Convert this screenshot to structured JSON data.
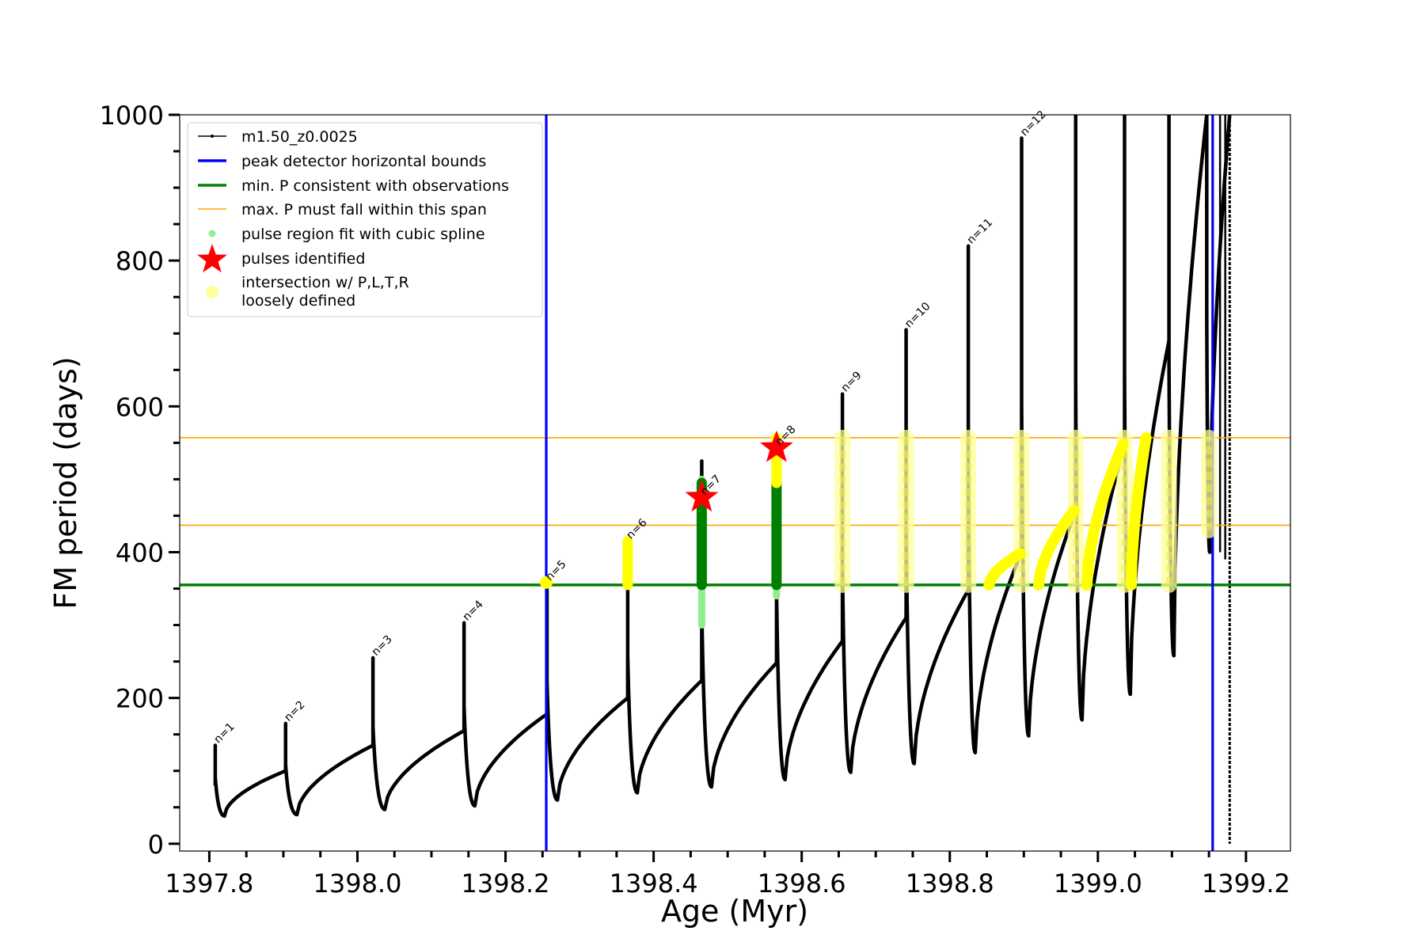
{
  "chart_data": {
    "type": "line",
    "title": "",
    "xlabel": "Age (Myr)",
    "ylabel": "FM period (days)",
    "xlim": [
      1397.76,
      1399.26
    ],
    "ylim": [
      -10,
      1000
    ],
    "x_ticks": [
      1397.8,
      1398.0,
      1398.2,
      1398.4,
      1398.6,
      1398.8,
      1399.0,
      1399.2
    ],
    "x_tick_labels": [
      "1397.8",
      "1398.0",
      "1398.2",
      "1398.4",
      "1398.6",
      "1398.8",
      "1399.0",
      "1399.2"
    ],
    "y_ticks": [
      0,
      200,
      400,
      600,
      800,
      1000
    ],
    "y_tick_labels": [
      "0",
      "200",
      "400",
      "600",
      "800",
      "1000"
    ],
    "grid": false,
    "legend_position": "top-left",
    "legend": [
      {
        "label": "m1.50_z0.0025",
        "marker": "line-dot",
        "color": "#000000"
      },
      {
        "label": "peak detector horizontal bounds",
        "marker": "line",
        "color": "#0000ff"
      },
      {
        "label": "min. P consistent with observations",
        "marker": "line",
        "color": "#008000"
      },
      {
        "label": "max. P must fall within this span",
        "marker": "thin-line",
        "color": "#ffa500"
      },
      {
        "label": "pulse region fit with cubic spline",
        "marker": "dot",
        "color": "#90ee90"
      },
      {
        "label": "pulses identified",
        "marker": "star",
        "color": "#ff0000"
      },
      {
        "label": "intersection w/ P,L,T,R",
        "label2": "loosely defined",
        "marker": "circle",
        "color": "#ffff99"
      }
    ],
    "colors": {
      "track": "#000000",
      "vbound": "#0000ff",
      "minP": "#008000",
      "maxP": "#ffa500",
      "spline": "#90ee90",
      "pulse_fit": "#008000",
      "star": "#ff0000",
      "intersect": "#ffff00",
      "intersect_loose": "#ffff99"
    },
    "vertical_bounds": [
      1398.255,
      1399.155
    ],
    "min_period": 355,
    "max_period_span": [
      437,
      557
    ],
    "pulse_labels": [
      {
        "label": "n=1",
        "x": 1397.808,
        "y": 135
      },
      {
        "label": "n=2",
        "x": 1397.903,
        "y": 165
      },
      {
        "label": "n=3",
        "x": 1398.021,
        "y": 255
      },
      {
        "label": "n=4",
        "x": 1398.144,
        "y": 303
      },
      {
        "label": "n=5",
        "x": 1398.256,
        "y": 358
      },
      {
        "label": "n=6",
        "x": 1398.365,
        "y": 415
      },
      {
        "label": "n=7",
        "x": 1398.465,
        "y": 475
      },
      {
        "label": "n=8",
        "x": 1398.566,
        "y": 543
      },
      {
        "label": "n=9",
        "x": 1398.655,
        "y": 617
      },
      {
        "label": "n=10",
        "x": 1398.741,
        "y": 705
      },
      {
        "label": "n=11",
        "x": 1398.825,
        "y": 820
      },
      {
        "label": "n=12",
        "x": 1398.897,
        "y": 968
      }
    ],
    "pulses": [
      {
        "x": 1397.808,
        "peak": 135,
        "min": 38,
        "before": 80
      },
      {
        "x": 1397.903,
        "peak": 165,
        "min": 40,
        "before": 100
      },
      {
        "x": 1398.021,
        "peak": 255,
        "min": 47,
        "before": 135
      },
      {
        "x": 1398.144,
        "peak": 303,
        "min": 52,
        "before": 155
      },
      {
        "x": 1398.256,
        "peak": 358,
        "min": 60,
        "before": 178
      },
      {
        "x": 1398.365,
        "peak": 415,
        "min": 70,
        "before": 200
      },
      {
        "x": 1398.465,
        "peak": 525,
        "min": 78,
        "before": 224
      },
      {
        "x": 1398.566,
        "peak": 560,
        "min": 88,
        "before": 248
      },
      {
        "x": 1398.655,
        "peak": 617,
        "min": 98,
        "before": 278
      },
      {
        "x": 1398.741,
        "peak": 705,
        "min": 110,
        "before": 310
      },
      {
        "x": 1398.825,
        "peak": 820,
        "min": 125,
        "before": 348
      },
      {
        "x": 1398.897,
        "peak": 968,
        "min": 148,
        "before": 400
      },
      {
        "x": 1398.97,
        "peak": 1000,
        "min": 170,
        "before": 457
      },
      {
        "x": 1399.036,
        "peak": 1000,
        "min": 205,
        "before": 548
      },
      {
        "x": 1399.096,
        "peak": 1000,
        "min": 258,
        "before": 690
      },
      {
        "x": 1399.147,
        "peak": 1000,
        "min": 400,
        "before": 1000
      },
      {
        "x": 1399.178,
        "peak": 1000,
        "min": 0,
        "before": 1000
      }
    ],
    "stars": [
      {
        "x": 1398.465,
        "y": 475
      },
      {
        "x": 1398.566,
        "y": 543
      }
    ],
    "spline_regions": [
      {
        "x": 1398.465,
        "ymin": 300,
        "ymax": 500
      },
      {
        "x": 1398.566,
        "ymin": 340,
        "ymax": 495
      }
    ],
    "fit_regions": [
      {
        "x": 1398.465,
        "ymin": 355,
        "ymax": 495
      },
      {
        "x": 1398.566,
        "ymin": 355,
        "ymax": 495
      }
    ],
    "intersection_regions": [
      {
        "x": 1398.255,
        "ymin": 355,
        "ymax": 362,
        "style": "solid"
      },
      {
        "x": 1398.365,
        "ymin": 355,
        "ymax": 415,
        "style": "solid"
      },
      {
        "x": 1398.566,
        "ymin": 495,
        "ymax": 557,
        "style": "solid"
      },
      {
        "x": 1398.655,
        "ymin": 355,
        "ymax": 557,
        "style": "loose"
      },
      {
        "x": 1398.741,
        "ymin": 355,
        "ymax": 557,
        "style": "loose"
      },
      {
        "x": 1398.825,
        "ymin": 355,
        "ymax": 557,
        "style": "loose"
      },
      {
        "x": 1398.897,
        "ymin": 355,
        "ymax": 557,
        "style": "loose"
      },
      {
        "x": 1398.97,
        "ymin": 355,
        "ymax": 557,
        "style": "loose"
      },
      {
        "x": 1399.036,
        "ymin": 355,
        "ymax": 557,
        "style": "loose"
      },
      {
        "x": 1399.096,
        "ymin": 355,
        "ymax": 557,
        "style": "loose"
      },
      {
        "x": 1399.15,
        "ymin": 430,
        "ymax": 557,
        "style": "loose"
      }
    ],
    "intersection_arcs": [
      {
        "x0": 1398.853,
        "x1": 1398.895,
        "y0": 355,
        "y1": 398
      },
      {
        "x0": 1398.92,
        "x1": 1398.968,
        "y0": 355,
        "y1": 457
      },
      {
        "x0": 1398.985,
        "x1": 1399.034,
        "y0": 355,
        "y1": 548
      },
      {
        "x0": 1399.045,
        "x1": 1399.065,
        "y0": 355,
        "y1": 557
      }
    ]
  }
}
